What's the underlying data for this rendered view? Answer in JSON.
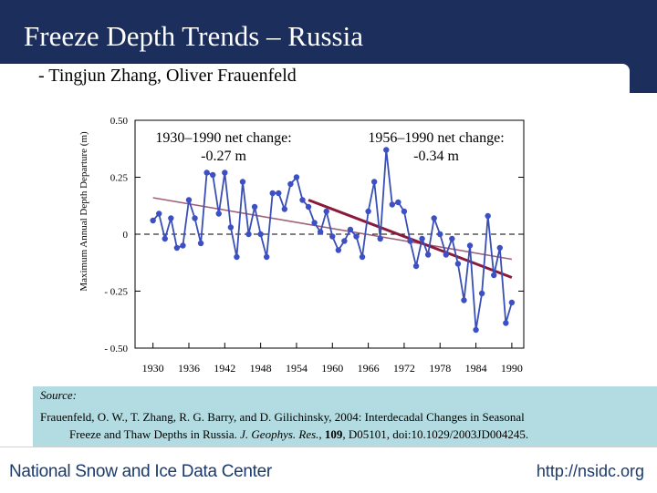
{
  "slide": {
    "title": "Freeze Depth Trends – Russia",
    "subtitle": "- Tingjun Zhang, Oliver Frauenfeld"
  },
  "chart_data": {
    "type": "line",
    "ylabel": "Maximum Annual Depth Departure (m)",
    "xlabel": "",
    "xlim": [
      1927,
      1992
    ],
    "ylim": [
      -0.5,
      0.5
    ],
    "xticks": [
      "1930",
      "1936",
      "1942",
      "1948",
      "1954",
      "1960",
      "1966",
      "1972",
      "1978",
      "1984",
      "1990"
    ],
    "yticks": [
      "0.50",
      "0.25",
      "0",
      "- 0.25",
      "- 0.50"
    ],
    "grid": false,
    "zero_line": "dashed",
    "series": [
      {
        "x": [
          1930,
          1931,
          1932,
          1933,
          1934,
          1935,
          1936,
          1937,
          1938,
          1939,
          1940,
          1941,
          1942,
          1943,
          1944,
          1945,
          1946,
          1947,
          1948,
          1949,
          1950,
          1951,
          1952,
          1953,
          1954,
          1955,
          1956,
          1957,
          1958,
          1959,
          1960,
          1961,
          1962,
          1963,
          1964,
          1965,
          1966,
          1967,
          1968,
          1969,
          1970,
          1971,
          1972,
          1973,
          1974,
          1975,
          1976,
          1977,
          1978,
          1979,
          1980,
          1981,
          1982,
          1983,
          1984,
          1985,
          1986,
          1987,
          1988,
          1989,
          1990
        ],
        "values": [
          0.06,
          0.09,
          -0.02,
          0.07,
          -0.06,
          -0.05,
          0.15,
          0.07,
          -0.04,
          0.27,
          0.26,
          0.09,
          0.27,
          0.03,
          -0.1,
          0.23,
          0.0,
          0.12,
          0.0,
          -0.1,
          0.18,
          0.18,
          0.11,
          0.22,
          0.25,
          0.15,
          0.12,
          0.05,
          0.01,
          0.1,
          -0.01,
          -0.07,
          -0.03,
          0.02,
          -0.01,
          -0.1,
          0.1,
          0.23,
          -0.02,
          0.37,
          0.13,
          0.14,
          0.1,
          -0.03,
          -0.14,
          -0.02,
          -0.09,
          0.07,
          0.0,
          -0.09,
          -0.02,
          -0.13,
          -0.29,
          -0.05,
          -0.42,
          -0.26,
          0.08,
          -0.18,
          -0.06,
          -0.39,
          -0.3
        ]
      }
    ],
    "trends": [
      {
        "label_range": "1930–1990 net change:",
        "label_value": "-0.27 m",
        "x": [
          1930,
          1990
        ],
        "values": [
          0.16,
          -0.11
        ],
        "color": "#a0607a"
      },
      {
        "label_range": "1956–1990 net change:",
        "label_value": "-0.34 m",
        "x": [
          1956,
          1990
        ],
        "values": [
          0.15,
          -0.19
        ],
        "color": "#8b1a3a"
      }
    ],
    "colors": {
      "series": "#3a4fb5",
      "marker_fill": "#3d4fc4"
    }
  },
  "source": {
    "label": "Source:",
    "line1": "Frauenfeld, O. W., T. Zhang, R. G. Barry, and D. Gilichinsky, 2004: Interdecadal Changes in Seasonal",
    "line2a": "Freeze and Thaw Depths in Russia. ",
    "journal": "J. Geophys. Res.",
    "line2b": ", ",
    "volume": "109",
    "line2c": ", D05101, doi:10.1029/2003JD004245."
  },
  "footer": {
    "org": "National Snow and Ice Data Center",
    "url": "http://nsidc.org"
  }
}
